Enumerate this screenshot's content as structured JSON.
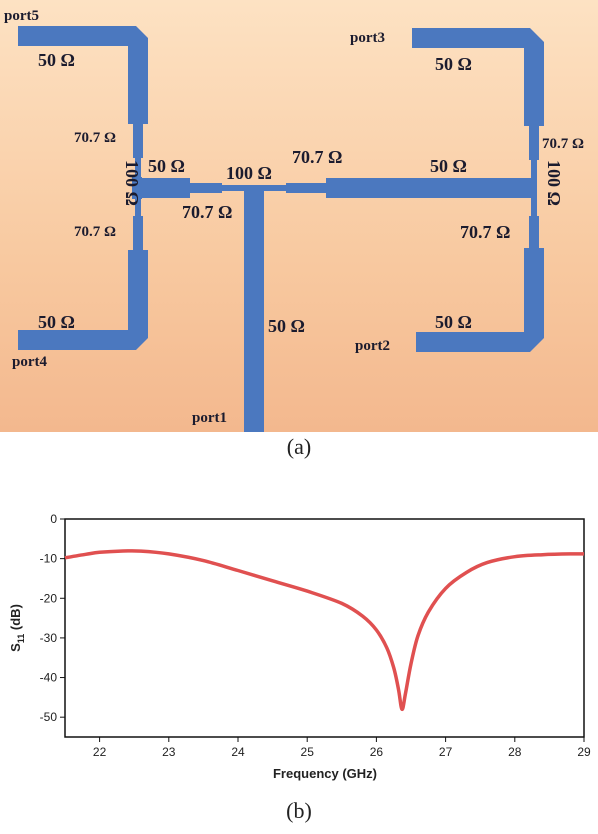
{
  "figure_a": {
    "caption": "(a)",
    "ports": {
      "port1": "port1",
      "port2": "port2",
      "port3": "port3",
      "port4": "port4",
      "port5": "port5"
    },
    "impedances": {
      "z50": "50 Ω",
      "z70": "70.7 Ω",
      "z100": "100 Ω"
    },
    "trace_color": "#4b78bf"
  },
  "figure_b": {
    "caption": "(b)"
  },
  "chart_data": {
    "type": "line",
    "title": "",
    "xlabel": "Frequency (GHz)",
    "ylabel_main": "S",
    "ylabel_sub": "11",
    "ylabel_unit": " (dB)",
    "xlim": [
      21.5,
      29
    ],
    "ylim": [
      -55,
      0
    ],
    "xticks": [
      22,
      23,
      24,
      25,
      26,
      27,
      28,
      29
    ],
    "yticks": [
      0,
      -10,
      -20,
      -30,
      -40,
      -50
    ],
    "grid": false,
    "line_color": "#e05050",
    "series": [
      {
        "x": [
          21.5,
          21.8,
          22.0,
          22.3,
          22.6,
          23.0,
          23.5,
          24.0,
          24.5,
          25.0,
          25.5,
          25.8,
          26.0,
          26.15,
          26.25,
          26.32,
          26.37,
          26.42,
          26.5,
          26.6,
          26.75,
          27.0,
          27.3,
          27.6,
          28.0,
          28.4,
          28.8,
          29.0
        ],
        "values": [
          -9.8,
          -8.9,
          -8.4,
          -8.1,
          -8.1,
          -8.8,
          -10.5,
          -13.0,
          -15.6,
          -18.2,
          -21.3,
          -24.5,
          -28.0,
          -32.5,
          -37.5,
          -43.0,
          -48.0,
          -44.0,
          -36.5,
          -29.5,
          -23.5,
          -17.5,
          -13.5,
          -11.0,
          -9.5,
          -9.0,
          -8.8,
          -8.8
        ]
      }
    ]
  }
}
